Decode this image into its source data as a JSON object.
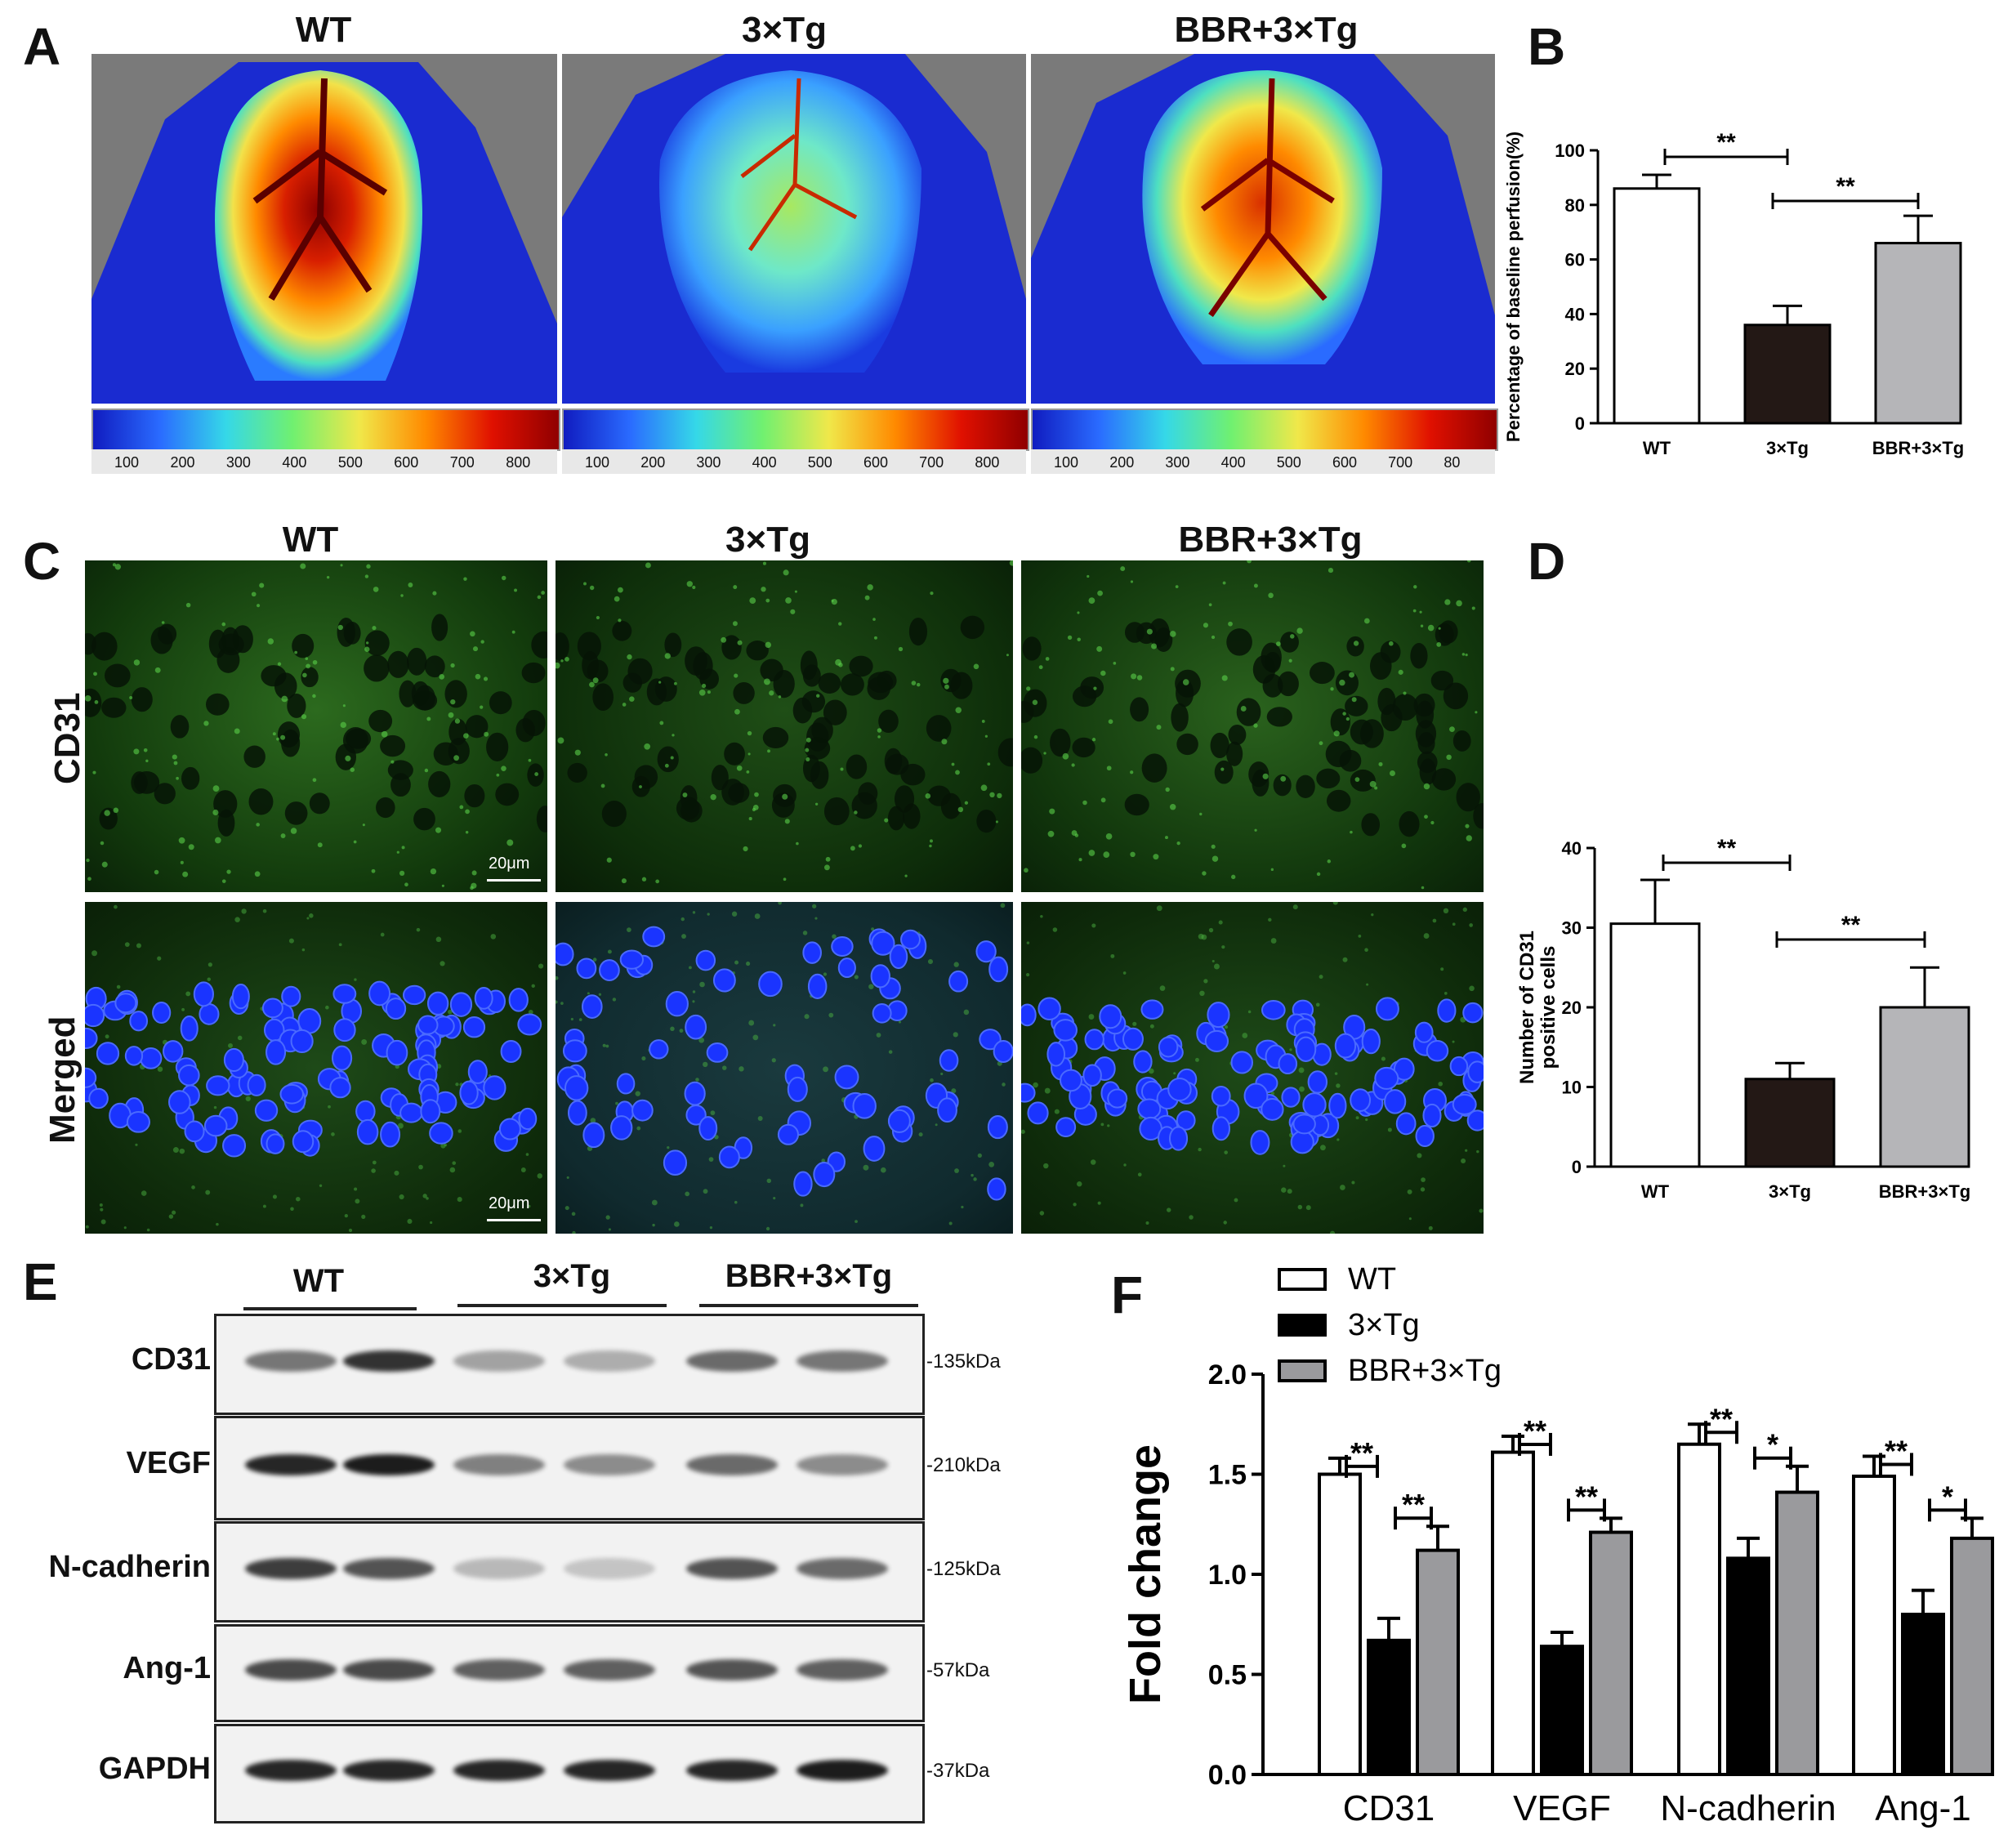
{
  "panels": {
    "A": "A",
    "B": "B",
    "C": "C",
    "D": "D",
    "E": "E",
    "F": "F"
  },
  "groups": [
    "WT",
    "3×Tg",
    "BBR+3×Tg"
  ],
  "colorbar_ticks_full": [
    "100",
    "200",
    "300",
    "400",
    "500",
    "600",
    "700",
    "800"
  ],
  "colorbar_ticks_last": [
    "100",
    "200",
    "300",
    "400",
    "500",
    "600",
    "700",
    "80"
  ],
  "panel_c": {
    "row_labels": [
      "CD31",
      "Merged"
    ],
    "scale_bar": "20μm"
  },
  "panel_e": {
    "rows": [
      {
        "label": "CD31",
        "kda": "-135kDa"
      },
      {
        "label": "VEGF",
        "kda": "-210kDa"
      },
      {
        "label": "N-cadherin",
        "kda": "-125kDa"
      },
      {
        "label": "Ang-1",
        "kda": "-57kDa"
      },
      {
        "label": "GAPDH",
        "kda": "-37kDa"
      }
    ]
  },
  "colors": {
    "wt": "#ffffff",
    "tg": "#231815",
    "bbr": "#b5b5b8",
    "f_tg": "#000000",
    "f_bbr": "#9a9a9d"
  },
  "chart_data": [
    {
      "panel": "B",
      "type": "bar",
      "categories": [
        "WT",
        "3×Tg",
        "BBR+3×Tg"
      ],
      "values": [
        86,
        36,
        66
      ],
      "errors": [
        5,
        7,
        10
      ],
      "ylabel": "Percentage of baseline perfusion(%)",
      "ylim": [
        0,
        100
      ],
      "yticks": [
        "0",
        "20",
        "40",
        "60",
        "80",
        "100"
      ],
      "significance": [
        {
          "from": 0,
          "to": 1,
          "label": "**"
        },
        {
          "from": 1,
          "to": 2,
          "label": "**"
        }
      ]
    },
    {
      "panel": "D",
      "type": "bar",
      "categories": [
        "WT",
        "3×Tg",
        "BBR+3×Tg"
      ],
      "values": [
        30.5,
        11,
        20
      ],
      "errors": [
        5.5,
        2,
        5
      ],
      "ylabel": "Number of CD31 positive cells",
      "ylim": [
        0,
        40
      ],
      "yticks": [
        "0",
        "10",
        "20",
        "30",
        "40"
      ],
      "significance": [
        {
          "from": 0,
          "to": 1,
          "label": "**"
        },
        {
          "from": 1,
          "to": 2,
          "label": "**"
        }
      ]
    },
    {
      "panel": "F",
      "type": "bar",
      "categories": [
        "CD31",
        "VEGF",
        "N-cadherin",
        "Ang-1"
      ],
      "series": [
        {
          "name": "WT",
          "values": [
            1.5,
            1.61,
            1.65,
            1.49
          ],
          "errors": [
            0.08,
            0.08,
            0.1,
            0.1
          ]
        },
        {
          "name": "3×Tg",
          "values": [
            0.67,
            0.64,
            1.08,
            0.8
          ],
          "errors": [
            0.11,
            0.07,
            0.1,
            0.12
          ]
        },
        {
          "name": "BBR+3×Tg",
          "values": [
            1.12,
            1.21,
            1.41,
            1.18
          ],
          "errors": [
            0.12,
            0.07,
            0.13,
            0.1
          ]
        }
      ],
      "ylabel": "Fold change",
      "ylim": [
        0,
        2.0
      ],
      "yticks": [
        "0.0",
        "0.5",
        "1.0",
        "1.5",
        "2.0"
      ],
      "significance": [
        {
          "category": 0,
          "pair": "WT-3×Tg",
          "label": "**"
        },
        {
          "category": 0,
          "pair": "3×Tg-BBR",
          "label": "**"
        },
        {
          "category": 1,
          "pair": "WT-3×Tg",
          "label": "**"
        },
        {
          "category": 1,
          "pair": "3×Tg-BBR",
          "label": "**"
        },
        {
          "category": 2,
          "pair": "WT-3×Tg",
          "label": "**"
        },
        {
          "category": 2,
          "pair": "3×Tg-BBR",
          "label": "*"
        },
        {
          "category": 3,
          "pair": "WT-3×Tg",
          "label": "**"
        },
        {
          "category": 3,
          "pair": "3×Tg-BBR",
          "label": "*"
        }
      ]
    }
  ]
}
